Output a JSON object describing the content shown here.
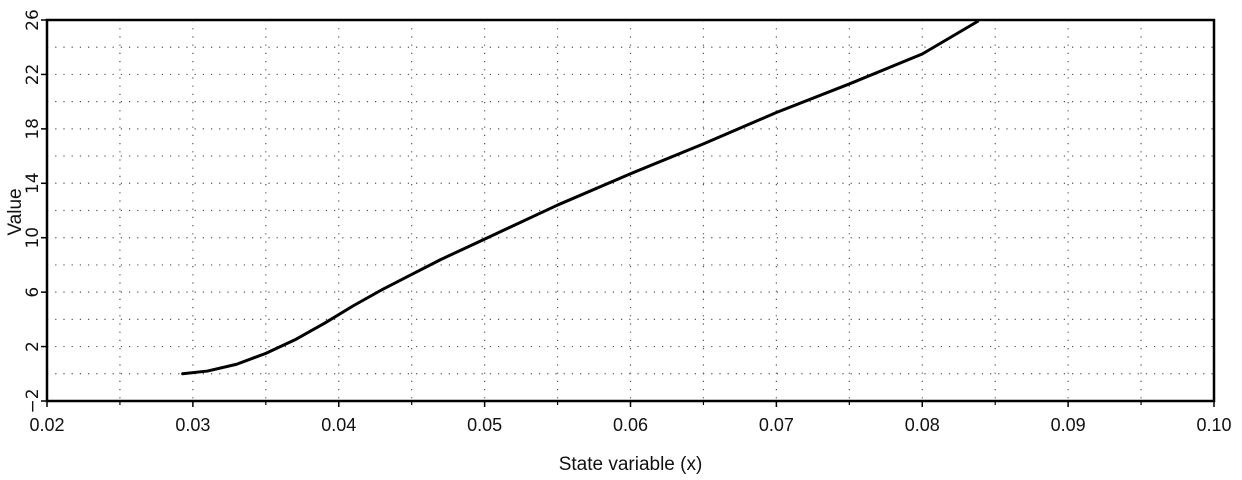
{
  "chart_data": {
    "type": "line",
    "xlabel": "State variable (x)",
    "ylabel": "Value",
    "xlim": [
      0.02,
      0.1
    ],
    "ylim": [
      -2,
      26
    ],
    "x_ticks": [
      0.02,
      0.03,
      0.04,
      0.05,
      0.06,
      0.07,
      0.08,
      0.09,
      0.1
    ],
    "x_tick_labels": [
      "0.02",
      "0.03",
      "0.04",
      "0.05",
      "0.06",
      "0.07",
      "0.08",
      "0.09",
      "0.10"
    ],
    "y_ticks": [
      -2,
      2,
      6,
      10,
      14,
      18,
      22,
      26
    ],
    "y_tick_labels": [
      "−2",
      "2",
      "6",
      "10",
      "14",
      "18",
      "22",
      "26"
    ],
    "grid": true,
    "series": [
      {
        "x": [
          0.0293,
          0.031,
          0.033,
          0.035,
          0.037,
          0.039,
          0.041,
          0.043,
          0.045,
          0.047,
          0.05,
          0.055,
          0.06,
          0.065,
          0.07,
          0.075,
          0.08,
          0.0838
        ],
        "values": [
          0.0,
          0.2,
          0.7,
          1.5,
          2.5,
          3.7,
          5.0,
          6.2,
          7.3,
          8.4,
          9.9,
          12.4,
          14.7,
          16.9,
          19.2,
          21.3,
          23.5,
          25.9
        ]
      }
    ]
  }
}
